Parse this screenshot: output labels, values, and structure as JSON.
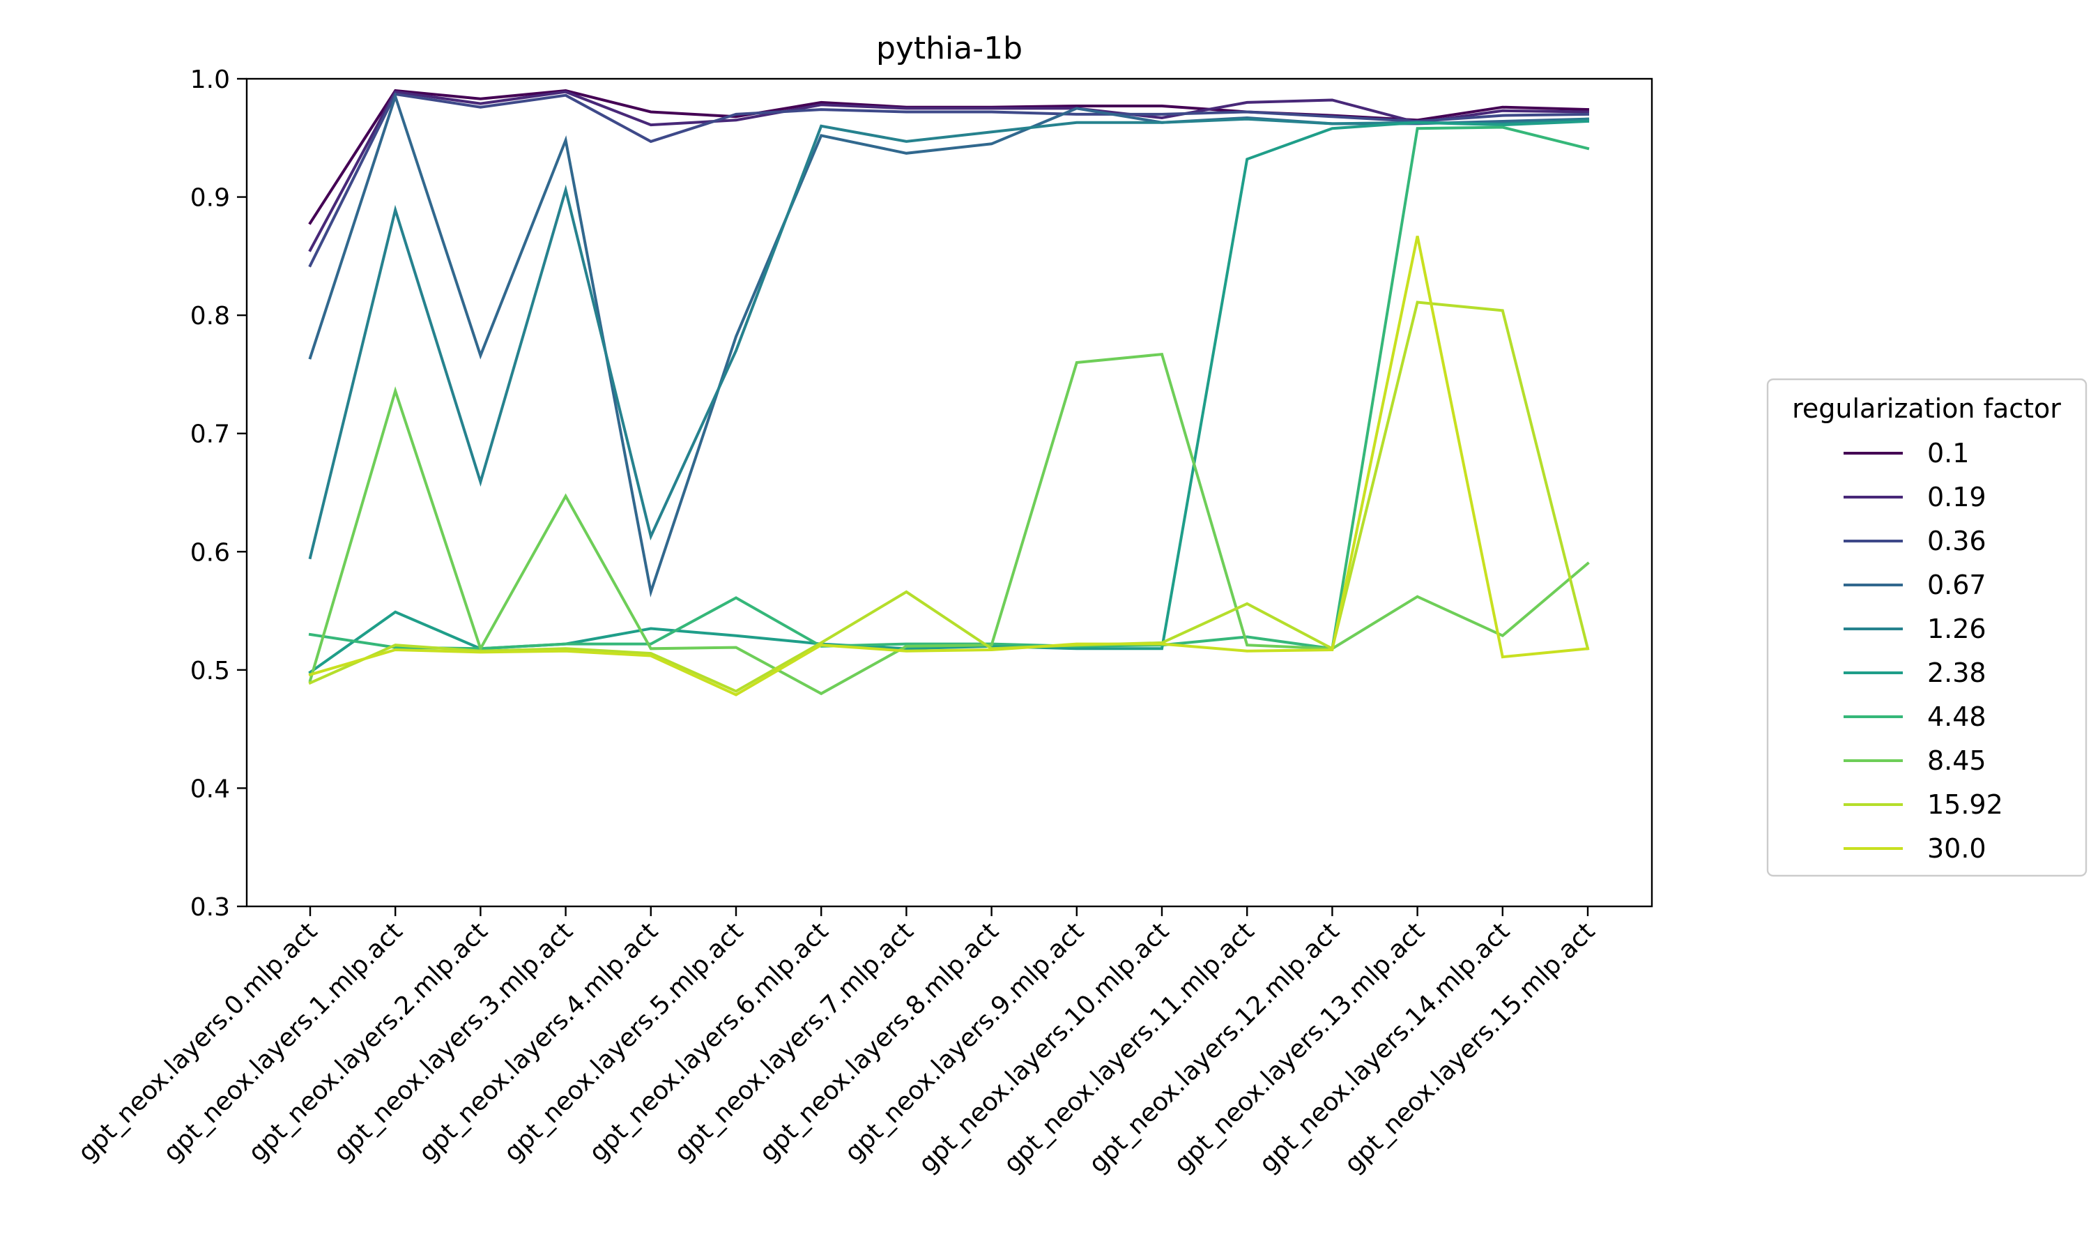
{
  "chart_data": {
    "type": "line",
    "title": "pythia-1b",
    "xlabel": "",
    "ylabel": "",
    "ylim": [
      0.3,
      1.0
    ],
    "yticks": [
      0.3,
      0.4,
      0.5,
      0.6,
      0.7,
      0.8,
      0.9,
      1.0
    ],
    "ytick_labels": [
      "0.3",
      "0.4",
      "0.5",
      "0.6",
      "0.7",
      "0.8",
      "0.9",
      "1.0"
    ],
    "grid": false,
    "legend_title": "regularization factor",
    "legend_position": "outside-right",
    "categories": [
      "gpt_neox.layers.0.mlp.act",
      "gpt_neox.layers.1.mlp.act",
      "gpt_neox.layers.2.mlp.act",
      "gpt_neox.layers.3.mlp.act",
      "gpt_neox.layers.4.mlp.act",
      "gpt_neox.layers.5.mlp.act",
      "gpt_neox.layers.6.mlp.act",
      "gpt_neox.layers.7.mlp.act",
      "gpt_neox.layers.8.mlp.act",
      "gpt_neox.layers.9.mlp.act",
      "gpt_neox.layers.10.mlp.act",
      "gpt_neox.layers.11.mlp.act",
      "gpt_neox.layers.12.mlp.act",
      "gpt_neox.layers.13.mlp.act",
      "gpt_neox.layers.14.mlp.act",
      "gpt_neox.layers.15.mlp.act"
    ],
    "series": [
      {
        "name": "0.1",
        "color": "#440154",
        "values": [
          0.878,
          0.99,
          0.983,
          0.99,
          0.972,
          0.968,
          0.98,
          0.976,
          0.976,
          0.977,
          0.977,
          0.972,
          0.969,
          0.965,
          0.976,
          0.974
        ]
      },
      {
        "name": "0.19",
        "color": "#482878",
        "values": [
          0.855,
          0.989,
          0.979,
          0.989,
          0.961,
          0.965,
          0.978,
          0.975,
          0.975,
          0.975,
          0.967,
          0.98,
          0.982,
          0.963,
          0.973,
          0.972
        ]
      },
      {
        "name": "0.36",
        "color": "#3e4989",
        "values": [
          0.842,
          0.987,
          0.976,
          0.986,
          0.947,
          0.97,
          0.974,
          0.972,
          0.972,
          0.97,
          0.97,
          0.972,
          0.968,
          0.964,
          0.969,
          0.97
        ]
      },
      {
        "name": "0.67",
        "color": "#31688e",
        "values": [
          0.764,
          0.985,
          0.766,
          0.948,
          0.566,
          0.782,
          0.952,
          0.937,
          0.945,
          0.975,
          0.963,
          0.967,
          0.962,
          0.962,
          0.964,
          0.966
        ]
      },
      {
        "name": "1.26",
        "color": "#26828e",
        "values": [
          0.595,
          0.889,
          0.659,
          0.906,
          0.613,
          0.77,
          0.96,
          0.947,
          0.955,
          0.963,
          0.963,
          0.966,
          0.962,
          0.963,
          0.962,
          0.966
        ]
      },
      {
        "name": "2.38",
        "color": "#1f9e89",
        "values": [
          0.498,
          0.549,
          0.518,
          0.522,
          0.535,
          0.529,
          0.522,
          0.518,
          0.52,
          0.518,
          0.518,
          0.932,
          0.958,
          0.963,
          0.961,
          0.964
        ]
      },
      {
        "name": "4.48",
        "color": "#35b779",
        "values": [
          0.53,
          0.519,
          0.518,
          0.522,
          0.522,
          0.561,
          0.52,
          0.522,
          0.522,
          0.52,
          0.521,
          0.528,
          0.518,
          0.958,
          0.959,
          0.941
        ]
      },
      {
        "name": "8.45",
        "color": "#6ece58",
        "values": [
          0.491,
          0.736,
          0.518,
          0.647,
          0.518,
          0.519,
          0.48,
          0.52,
          0.521,
          0.76,
          0.767,
          0.521,
          0.518,
          0.562,
          0.529,
          0.59
        ]
      },
      {
        "name": "15.92",
        "color": "#b5de2b",
        "values": [
          0.489,
          0.521,
          0.516,
          0.518,
          0.514,
          0.482,
          0.523,
          0.566,
          0.518,
          0.521,
          0.523,
          0.556,
          0.518,
          0.811,
          0.804,
          0.518
        ]
      },
      {
        "name": "30.0",
        "color": "#c8e020",
        "values": [
          0.496,
          0.517,
          0.515,
          0.516,
          0.512,
          0.479,
          0.521,
          0.516,
          0.517,
          0.522,
          0.522,
          0.516,
          0.517,
          0.867,
          0.511,
          0.518
        ]
      }
    ]
  }
}
